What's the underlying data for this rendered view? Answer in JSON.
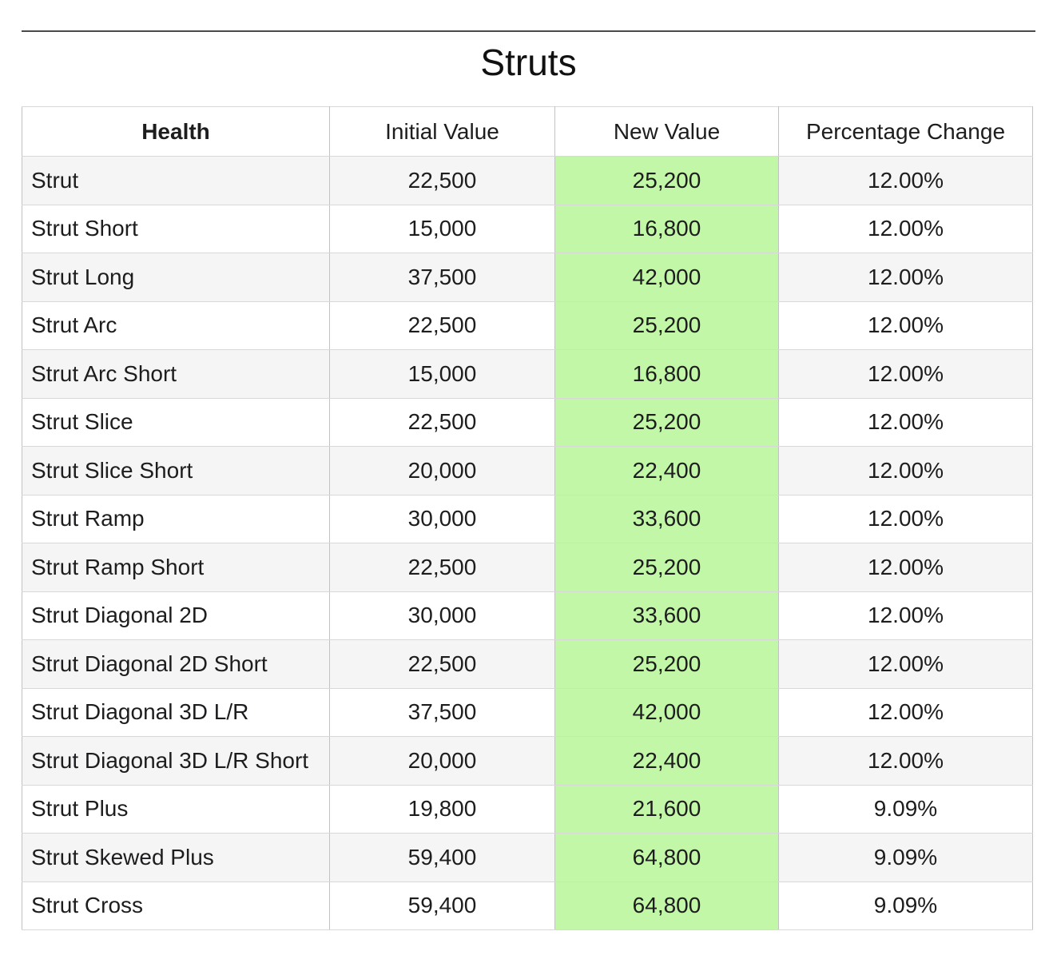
{
  "page": {
    "title": "Struts"
  },
  "colors": {
    "highlight_green": "#c3f7a8",
    "stripe_gray": "#f5f5f5",
    "rule_dark": "#4a4a4a"
  },
  "table": {
    "columns": [
      "Health",
      "Initial Value",
      "New Value",
      "Percentage Change"
    ],
    "highlighted_column": "New Value",
    "rows": [
      {
        "name": "Strut",
        "initial": "22,500",
        "new": "25,200",
        "pct": "12.00%"
      },
      {
        "name": "Strut Short",
        "initial": "15,000",
        "new": "16,800",
        "pct": "12.00%"
      },
      {
        "name": "Strut Long",
        "initial": "37,500",
        "new": "42,000",
        "pct": "12.00%"
      },
      {
        "name": "Strut Arc",
        "initial": "22,500",
        "new": "25,200",
        "pct": "12.00%"
      },
      {
        "name": "Strut Arc Short",
        "initial": "15,000",
        "new": "16,800",
        "pct": "12.00%"
      },
      {
        "name": "Strut Slice",
        "initial": "22,500",
        "new": "25,200",
        "pct": "12.00%"
      },
      {
        "name": "Strut Slice Short",
        "initial": "20,000",
        "new": "22,400",
        "pct": "12.00%"
      },
      {
        "name": "Strut Ramp",
        "initial": "30,000",
        "new": "33,600",
        "pct": "12.00%"
      },
      {
        "name": "Strut Ramp Short",
        "initial": "22,500",
        "new": "25,200",
        "pct": "12.00%"
      },
      {
        "name": "Strut Diagonal 2D",
        "initial": "30,000",
        "new": "33,600",
        "pct": "12.00%"
      },
      {
        "name": "Strut Diagonal 2D Short",
        "initial": "22,500",
        "new": "25,200",
        "pct": "12.00%"
      },
      {
        "name": "Strut Diagonal 3D L/R",
        "initial": "37,500",
        "new": "42,000",
        "pct": "12.00%"
      },
      {
        "name": "Strut Diagonal 3D L/R Short",
        "initial": "20,000",
        "new": "22,400",
        "pct": "12.00%"
      },
      {
        "name": "Strut Plus",
        "initial": "19,800",
        "new": "21,600",
        "pct": "9.09%"
      },
      {
        "name": "Strut Skewed Plus",
        "initial": "59,400",
        "new": "64,800",
        "pct": "9.09%"
      },
      {
        "name": "Strut Cross",
        "initial": "59,400",
        "new": "64,800",
        "pct": "9.09%"
      }
    ]
  }
}
